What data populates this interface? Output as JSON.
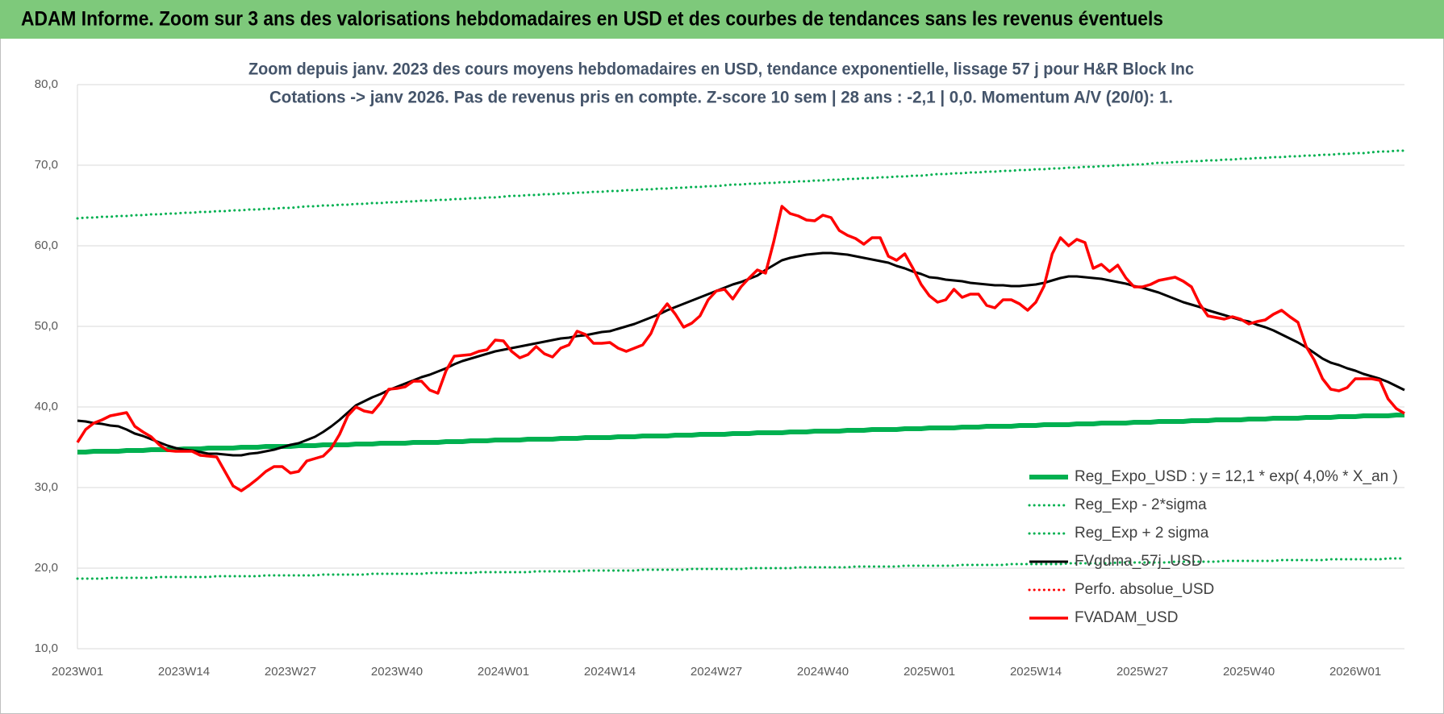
{
  "chart_data": {
    "type": "line",
    "title": "ADAM Informe. Zoom sur 3 ans des valorisations hebdomadaires en USD et des courbes de tendances sans les revenus éventuels",
    "subtitle": [
      "Zoom depuis janv. 2023 des cours moyens hebdomadaires en USD, tendance exponentielle, lissage 57 j pour H&R Block Inc",
      "Cotations -> janv 2026. Pas de revenus pris en compte. Z-score 10 sem | 28 ans : -2,1 | 0,0. Momentum A/V (20/0): 1."
    ],
    "categories": [
      "2023W01",
      null,
      null,
      null,
      null,
      null,
      null,
      null,
      null,
      null,
      null,
      null,
      null,
      "2023W14",
      null,
      null,
      null,
      null,
      null,
      null,
      null,
      null,
      null,
      null,
      null,
      null,
      "2023W27",
      null,
      null,
      null,
      null,
      null,
      null,
      null,
      null,
      null,
      null,
      null,
      null,
      "2023W40",
      null,
      null,
      null,
      null,
      null,
      null,
      null,
      null,
      null,
      null,
      null,
      null,
      "2024W01",
      null,
      null,
      null,
      null,
      null,
      null,
      null,
      null,
      null,
      null,
      null,
      null,
      "2024W14",
      null,
      null,
      null,
      null,
      null,
      null,
      null,
      null,
      null,
      null,
      null,
      null,
      "2024W27",
      null,
      null,
      null,
      null,
      null,
      null,
      null,
      null,
      null,
      null,
      null,
      null,
      "2024W40",
      null,
      null,
      null,
      null,
      null,
      null,
      null,
      null,
      null,
      null,
      null,
      null,
      "2025W01",
      null,
      null,
      null,
      null,
      null,
      null,
      null,
      null,
      null,
      null,
      null,
      null,
      "2025W14",
      null,
      null,
      null,
      null,
      null,
      null,
      null,
      null,
      null,
      null,
      null,
      null,
      "2025W27",
      null,
      null,
      null,
      null,
      null,
      null,
      null,
      null,
      null,
      null,
      null,
      null,
      "2025W40",
      null,
      null,
      null,
      null,
      null,
      null,
      null,
      null,
      null,
      null,
      null,
      null,
      "2026W01",
      null,
      null,
      null,
      null,
      null,
      null
    ],
    "ylim": [
      10,
      80
    ],
    "yticks": [
      {
        "value": 10,
        "label": "10,0"
      },
      {
        "value": 20,
        "label": "20,0"
      },
      {
        "value": 30,
        "label": "30,0"
      },
      {
        "value": 40,
        "label": "40,0"
      },
      {
        "value": 50,
        "label": "50,0"
      },
      {
        "value": 60,
        "label": "60,0"
      },
      {
        "value": 70,
        "label": "70,0"
      },
      {
        "value": 80,
        "label": "80,0"
      }
    ],
    "grid": true,
    "legend": "lower right",
    "series": [
      {
        "name": "Reg_Expo_USD : y = 12,1 * exp( 4,0% *  X_an )",
        "color": "#00b050",
        "dash": "solid",
        "width": 6,
        "values": [
          34.4,
          34.4,
          34.5,
          34.5,
          34.5,
          34.5,
          34.6,
          34.6,
          34.6,
          34.7,
          34.7,
          34.7,
          34.7,
          34.8,
          34.8,
          34.8,
          34.9,
          34.9,
          34.9,
          34.9,
          35.0,
          35.0,
          35.0,
          35.1,
          35.1,
          35.1,
          35.1,
          35.2,
          35.2,
          35.2,
          35.3,
          35.3,
          35.3,
          35.3,
          35.4,
          35.4,
          35.4,
          35.5,
          35.5,
          35.5,
          35.5,
          35.6,
          35.6,
          35.6,
          35.6,
          35.7,
          35.7,
          35.7,
          35.8,
          35.8,
          35.8,
          35.9,
          35.9,
          35.9,
          35.9,
          36.0,
          36.0,
          36.0,
          36.0,
          36.1,
          36.1,
          36.1,
          36.2,
          36.2,
          36.2,
          36.2,
          36.3,
          36.3,
          36.3,
          36.4,
          36.4,
          36.4,
          36.4,
          36.5,
          36.5,
          36.5,
          36.6,
          36.6,
          36.6,
          36.6,
          36.7,
          36.7,
          36.7,
          36.8,
          36.8,
          36.8,
          36.8,
          36.9,
          36.9,
          36.9,
          37.0,
          37.0,
          37.0,
          37.0,
          37.1,
          37.1,
          37.1,
          37.2,
          37.2,
          37.2,
          37.2,
          37.3,
          37.3,
          37.3,
          37.4,
          37.4,
          37.4,
          37.4,
          37.5,
          37.5,
          37.5,
          37.6,
          37.6,
          37.6,
          37.6,
          37.7,
          37.7,
          37.7,
          37.8,
          37.8,
          37.8,
          37.8,
          37.9,
          37.9,
          37.9,
          38.0,
          38.0,
          38.0,
          38.0,
          38.1,
          38.1,
          38.1,
          38.2,
          38.2,
          38.2,
          38.2,
          38.3,
          38.3,
          38.3,
          38.4,
          38.4,
          38.4,
          38.4,
          38.5,
          38.5,
          38.5,
          38.6,
          38.6,
          38.6,
          38.6,
          38.7,
          38.7,
          38.7,
          38.7,
          38.8,
          38.8,
          38.8,
          38.9,
          38.9,
          38.9,
          38.9,
          39.0,
          39.0
        ]
      },
      {
        "name": "Reg_Exp - 2*sigma",
        "color": "#00b050",
        "dash": "dotted",
        "width": 3,
        "values": [
          18.7,
          18.7,
          18.7,
          18.7,
          18.8,
          18.8,
          18.8,
          18.8,
          18.8,
          18.8,
          18.9,
          18.9,
          18.9,
          18.9,
          18.9,
          18.9,
          18.9,
          19.0,
          19.0,
          19.0,
          19.0,
          19.0,
          19.0,
          19.1,
          19.1,
          19.1,
          19.1,
          19.1,
          19.1,
          19.1,
          19.2,
          19.2,
          19.2,
          19.2,
          19.2,
          19.2,
          19.3,
          19.3,
          19.3,
          19.3,
          19.3,
          19.3,
          19.3,
          19.4,
          19.4,
          19.4,
          19.4,
          19.4,
          19.4,
          19.5,
          19.5,
          19.5,
          19.5,
          19.5,
          19.5,
          19.5,
          19.6,
          19.6,
          19.6,
          19.6,
          19.6,
          19.6,
          19.7,
          19.7,
          19.7,
          19.7,
          19.7,
          19.7,
          19.7,
          19.8,
          19.8,
          19.8,
          19.8,
          19.8,
          19.8,
          19.9,
          19.9,
          19.9,
          19.9,
          19.9,
          19.9,
          19.9,
          20.0,
          20.0,
          20.0,
          20.0,
          20.0,
          20.0,
          20.1,
          20.1,
          20.1,
          20.1,
          20.1,
          20.1,
          20.1,
          20.2,
          20.2,
          20.2,
          20.2,
          20.2,
          20.2,
          20.3,
          20.3,
          20.3,
          20.3,
          20.3,
          20.3,
          20.3,
          20.4,
          20.4,
          20.4,
          20.4,
          20.4,
          20.4,
          20.5,
          20.5,
          20.5,
          20.5,
          20.5,
          20.5,
          20.5,
          20.6,
          20.6,
          20.6,
          20.6,
          20.6,
          20.6,
          20.7,
          20.7,
          20.7,
          20.7,
          20.7,
          20.7,
          20.7,
          20.8,
          20.8,
          20.8,
          20.8,
          20.8,
          20.8,
          20.9,
          20.9,
          20.9,
          20.9,
          20.9,
          20.9,
          20.9,
          21.0,
          21.0,
          21.0,
          21.0,
          21.0,
          21.0,
          21.1,
          21.1,
          21.1,
          21.1,
          21.1,
          21.1,
          21.1,
          21.2,
          21.2,
          21.2
        ]
      },
      {
        "name": "Reg_Exp + 2 sigma",
        "color": "#00b050",
        "dash": "dotted",
        "width": 3,
        "values": [
          63.4,
          63.5,
          63.5,
          63.6,
          63.6,
          63.7,
          63.7,
          63.8,
          63.8,
          63.9,
          63.9,
          64.0,
          64.0,
          64.1,
          64.1,
          64.2,
          64.2,
          64.3,
          64.3,
          64.4,
          64.4,
          64.5,
          64.5,
          64.6,
          64.6,
          64.7,
          64.7,
          64.8,
          64.9,
          64.9,
          65.0,
          65.0,
          65.1,
          65.1,
          65.2,
          65.2,
          65.3,
          65.3,
          65.4,
          65.4,
          65.5,
          65.5,
          65.6,
          65.6,
          65.7,
          65.7,
          65.8,
          65.8,
          65.9,
          65.9,
          66.0,
          66.0,
          66.1,
          66.2,
          66.2,
          66.3,
          66.3,
          66.4,
          66.4,
          66.5,
          66.5,
          66.6,
          66.6,
          66.7,
          66.7,
          66.8,
          66.8,
          66.9,
          66.9,
          67.0,
          67.0,
          67.1,
          67.1,
          67.2,
          67.2,
          67.3,
          67.3,
          67.4,
          67.4,
          67.5,
          67.6,
          67.6,
          67.7,
          67.7,
          67.8,
          67.8,
          67.9,
          67.9,
          68.0,
          68.0,
          68.1,
          68.1,
          68.2,
          68.2,
          68.3,
          68.3,
          68.4,
          68.4,
          68.5,
          68.5,
          68.6,
          68.6,
          68.7,
          68.7,
          68.8,
          68.9,
          68.9,
          69.0,
          69.0,
          69.1,
          69.1,
          69.2,
          69.2,
          69.3,
          69.3,
          69.4,
          69.4,
          69.5,
          69.5,
          69.6,
          69.6,
          69.7,
          69.7,
          69.8,
          69.8,
          69.9,
          69.9,
          70.0,
          70.0,
          70.1,
          70.1,
          70.2,
          70.3,
          70.3,
          70.4,
          70.4,
          70.5,
          70.5,
          70.6,
          70.6,
          70.7,
          70.7,
          70.8,
          70.8,
          70.9,
          70.9,
          71.0,
          71.0,
          71.1,
          71.1,
          71.2,
          71.2,
          71.3,
          71.3,
          71.4,
          71.4,
          71.5,
          71.5,
          71.6,
          71.7,
          71.7,
          71.8,
          71.8
        ]
      },
      {
        "name": "FVgdma_57j_USD",
        "color": "#000000",
        "dash": "solid",
        "width": 3,
        "values": [
          38.3,
          38.2,
          38.0,
          37.9,
          37.7,
          37.6,
          37.2,
          36.7,
          36.4,
          36.0,
          35.6,
          35.2,
          34.9,
          34.7,
          34.6,
          34.4,
          34.2,
          34.2,
          34.1,
          34.0,
          34.0,
          34.2,
          34.3,
          34.5,
          34.7,
          35.0,
          35.3,
          35.5,
          35.9,
          36.3,
          36.9,
          37.6,
          38.4,
          39.3,
          40.2,
          40.7,
          41.2,
          41.6,
          42.1,
          42.5,
          42.9,
          43.3,
          43.7,
          44.0,
          44.4,
          44.8,
          45.3,
          45.7,
          46.0,
          46.3,
          46.6,
          46.9,
          47.1,
          47.3,
          47.5,
          47.7,
          47.9,
          48.1,
          48.3,
          48.5,
          48.6,
          48.8,
          48.9,
          49.1,
          49.3,
          49.4,
          49.7,
          50.0,
          50.3,
          50.7,
          51.1,
          51.5,
          52.0,
          52.4,
          52.8,
          53.2,
          53.6,
          54.0,
          54.4,
          54.8,
          55.2,
          55.5,
          55.9,
          56.3,
          57.0,
          57.6,
          58.2,
          58.5,
          58.7,
          58.9,
          59.0,
          59.1,
          59.1,
          59.0,
          58.9,
          58.7,
          58.5,
          58.3,
          58.1,
          57.9,
          57.5,
          57.2,
          56.8,
          56.5,
          56.1,
          56.0,
          55.8,
          55.7,
          55.6,
          55.4,
          55.3,
          55.2,
          55.1,
          55.1,
          55.0,
          55.0,
          55.1,
          55.2,
          55.4,
          55.7,
          56.0,
          56.2,
          56.2,
          56.1,
          56.0,
          55.9,
          55.7,
          55.5,
          55.3,
          55.0,
          54.8,
          54.5,
          54.2,
          53.8,
          53.4,
          53.0,
          52.7,
          52.4,
          52.0,
          51.7,
          51.4,
          51.1,
          50.8,
          50.6,
          50.2,
          49.9,
          49.5,
          49.0,
          48.5,
          48.0,
          47.4,
          46.7,
          46.0,
          45.5,
          45.2,
          44.8,
          44.5,
          44.1,
          43.8,
          43.5,
          43.1,
          42.6,
          42.1
        ]
      },
      {
        "name": "Perfo. absolue_USD",
        "color": "#ff0000",
        "dash": "dotted",
        "width": 3,
        "values": [
          null,
          null,
          null,
          null,
          null,
          null,
          null,
          null,
          null,
          null,
          null,
          null,
          null,
          null,
          null,
          null,
          null,
          null,
          null,
          null,
          null,
          null,
          null,
          null,
          null,
          null,
          null,
          null,
          null,
          null,
          null,
          null,
          null,
          null,
          null,
          null,
          null,
          null,
          null,
          null,
          null,
          null,
          null,
          null,
          null,
          null,
          null,
          null,
          null,
          null,
          null,
          null,
          null,
          null,
          null,
          null,
          null,
          null,
          null,
          null,
          null,
          null,
          null,
          null,
          null,
          null,
          null,
          null,
          null,
          null,
          null,
          null,
          null,
          null,
          null,
          null,
          null,
          null,
          null,
          null,
          null,
          null,
          null,
          null,
          null,
          null,
          null,
          null,
          null,
          null,
          null,
          null,
          null,
          null,
          null,
          null,
          null,
          null,
          null,
          null,
          null,
          null,
          null,
          null,
          null,
          null,
          null,
          null,
          null,
          null,
          null,
          null,
          null,
          null,
          null,
          null,
          null,
          null,
          null,
          null,
          null,
          null,
          null,
          null,
          null,
          null,
          null,
          null,
          null,
          null,
          null,
          null,
          null,
          null,
          null,
          null,
          null,
          null,
          null,
          null,
          null,
          null,
          null,
          null,
          null,
          null,
          null,
          null,
          null,
          null,
          null,
          null,
          null,
          null,
          null,
          null,
          null,
          null,
          null,
          null,
          null,
          null,
          null
        ]
      },
      {
        "name": "FVADAM_USD",
        "color": "#ff0000",
        "dash": "solid",
        "width": 3.5,
        "values": [
          35.6,
          37.2,
          38.0,
          38.4,
          38.9,
          39.1,
          39.3,
          37.6,
          36.9,
          36.3,
          35.3,
          34.6,
          34.5,
          34.5,
          34.5,
          34.0,
          33.9,
          33.8,
          32.0,
          30.2,
          29.6,
          30.3,
          31.1,
          32.0,
          32.6,
          32.6,
          31.8,
          32.0,
          33.3,
          33.6,
          33.9,
          34.9,
          36.6,
          38.9,
          40.0,
          39.5,
          39.3,
          40.5,
          42.2,
          42.3,
          42.5,
          43.2,
          43.2,
          42.1,
          41.7,
          44.5,
          46.3,
          46.4,
          46.5,
          46.9,
          47.1,
          48.3,
          48.2,
          46.9,
          46.1,
          46.5,
          47.5,
          46.6,
          46.2,
          47.3,
          47.7,
          49.4,
          49.0,
          47.9,
          47.9,
          48.0,
          47.3,
          46.9,
          47.3,
          47.7,
          49.1,
          51.5,
          52.8,
          51.5,
          49.9,
          50.4,
          51.3,
          53.3,
          54.4,
          54.6,
          53.4,
          54.9,
          56.0,
          57.0,
          56.6,
          60.5,
          64.9,
          64.0,
          63.7,
          63.2,
          63.1,
          63.8,
          63.5,
          61.9,
          61.3,
          60.9,
          60.2,
          61.0,
          61.0,
          58.7,
          58.2,
          59.0,
          57.2,
          55.2,
          53.8,
          53.0,
          53.3,
          54.6,
          53.6,
          54.0,
          54.0,
          52.6,
          52.3,
          53.3,
          53.3,
          52.8,
          52.0,
          53.0,
          55.0,
          59.0,
          61.0,
          60.0,
          60.8,
          60.4,
          57.2,
          57.7,
          56.8,
          57.6,
          56.0,
          54.9,
          54.9,
          55.2,
          55.7,
          55.9,
          56.1,
          55.6,
          54.9,
          52.8,
          51.3,
          51.1,
          50.9,
          51.2,
          50.9,
          50.3,
          50.6,
          50.8,
          51.5,
          52.0,
          51.2,
          50.5,
          47.5,
          45.8,
          43.5,
          42.2,
          42.0,
          42.4,
          43.5,
          43.5,
          43.5,
          43.3,
          41.0,
          39.8,
          39.2
        ]
      }
    ]
  }
}
